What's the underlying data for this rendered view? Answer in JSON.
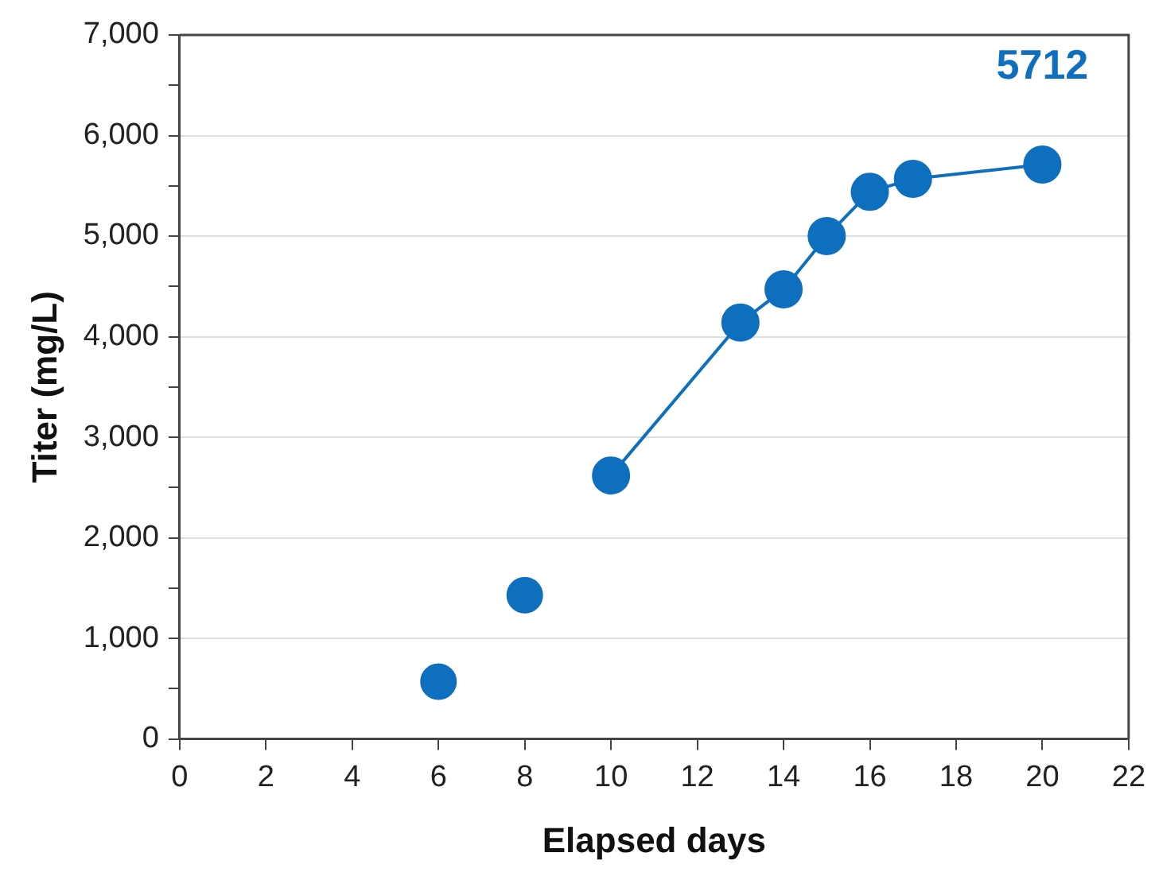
{
  "chart_data": {
    "type": "scatter",
    "xlabel": "Elapsed days",
    "ylabel": "Titer (mg/L)",
    "xlim": [
      0,
      22
    ],
    "xticks": [
      0,
      2,
      4,
      6,
      8,
      10,
      12,
      14,
      16,
      18,
      20,
      22
    ],
    "ylim": [
      0,
      7000
    ],
    "yticks": [
      0,
      {
        "value": 500,
        "label": null
      },
      {
        "value": 1000,
        "label": "1,000"
      },
      {
        "value": 1500,
        "label": null
      },
      {
        "value": 2000,
        "label": "2,000"
      },
      {
        "value": 2500,
        "label": null
      },
      {
        "value": 3000,
        "label": "3,000"
      },
      {
        "value": 3500,
        "label": null
      },
      {
        "value": 4000,
        "label": "4,000"
      },
      {
        "value": 4500,
        "label": null
      },
      {
        "value": 5000,
        "label": "5,000"
      },
      {
        "value": 5500,
        "label": null
      },
      {
        "value": 6000,
        "label": "6,000"
      },
      {
        "value": 6500,
        "label": null
      },
      {
        "value": 7000,
        "label": "7,000"
      }
    ],
    "grid": "y",
    "legend": false,
    "marker": "circle",
    "annotations": [
      {
        "text": "5712",
        "x": 20,
        "y": 5712
      }
    ],
    "series": [
      {
        "type": "scatter",
        "color": "#0f6fbf",
        "x": [
          6,
          8
        ],
        "values": [
          570,
          1430
        ]
      },
      {
        "type": "line",
        "color": "#0f6fbf",
        "x": [
          10,
          13,
          14,
          15,
          16,
          17,
          20
        ],
        "values": [
          2620,
          4140,
          4470,
          5000,
          5440,
          5570,
          5712
        ]
      }
    ]
  }
}
